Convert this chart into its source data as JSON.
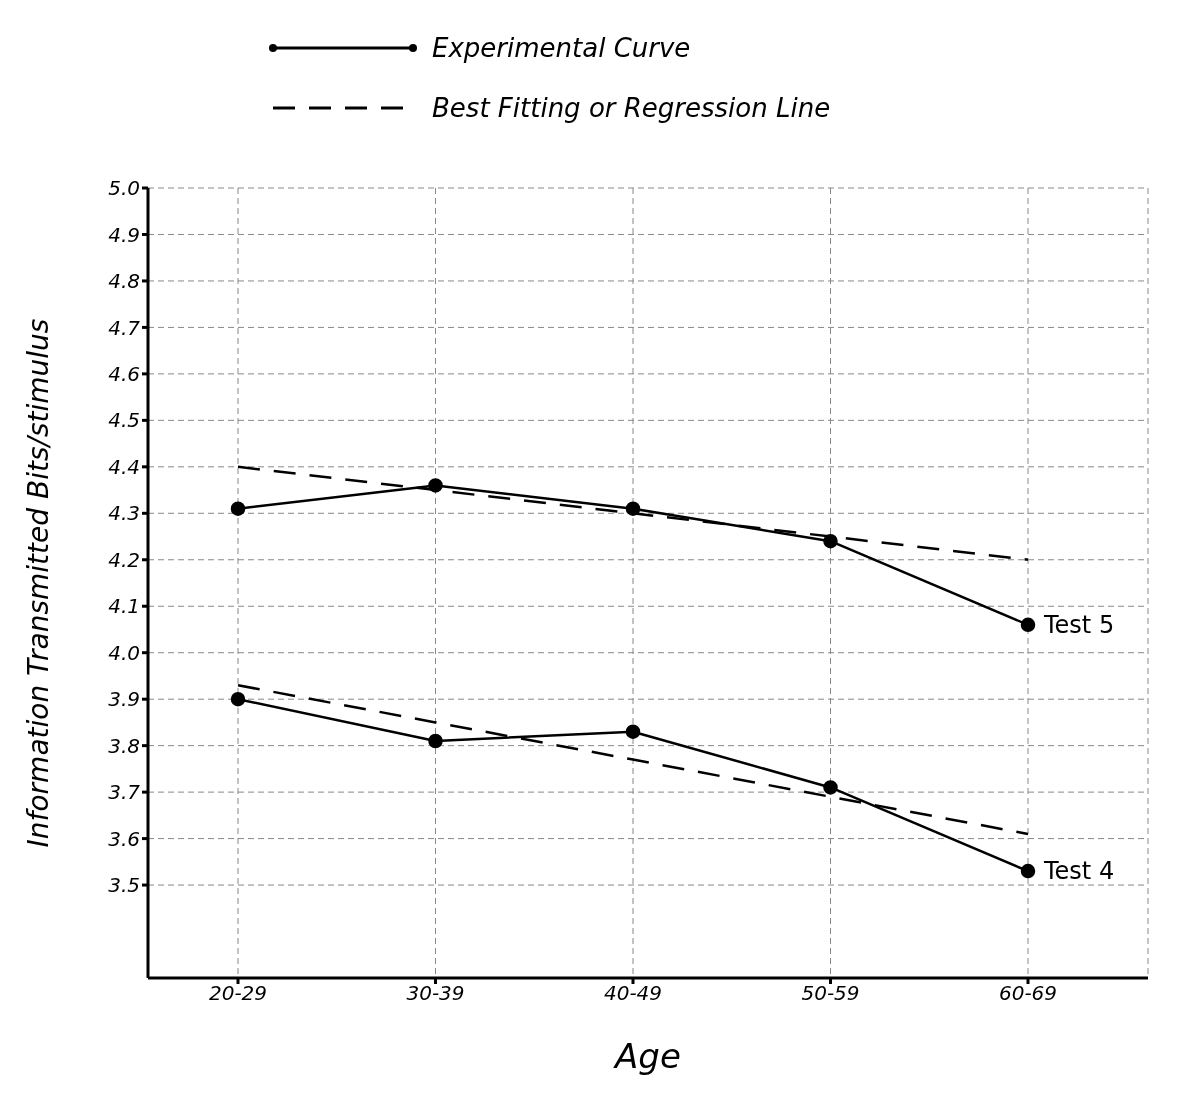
{
  "chart_data": {
    "type": "line",
    "xlabel": "Age",
    "ylabel": "Information Transmitted   Bits/stimulus",
    "categories": [
      "20-29",
      "30-39",
      "40-49",
      "50-59",
      "60-69"
    ],
    "series": [
      {
        "name": "Test 5",
        "color": "#000000",
        "values": [
          4.31,
          4.36,
          4.31,
          4.24,
          4.06
        ],
        "line_style": "solid",
        "marker": "circle"
      },
      {
        "color": "#000000",
        "values": [
          4.4,
          4.35,
          4.3,
          4.25,
          4.2
        ],
        "line_style": "dashed",
        "marker": "none"
      },
      {
        "name": "Test 4",
        "color": "#000000",
        "values": [
          3.9,
          3.81,
          3.83,
          3.71,
          3.53
        ],
        "line_style": "solid",
        "marker": "circle"
      },
      {
        "color": "#000000",
        "values": [
          3.93,
          3.85,
          3.77,
          3.69,
          3.61
        ],
        "line_style": "dashed",
        "marker": "none"
      }
    ],
    "annotations": [
      "Experimental Curve",
      "Best Fitting or Regression Line"
    ],
    "ylim": [
      3.3,
      5.0
    ],
    "yticks": [
      3.5,
      3.6,
      3.7,
      3.8,
      3.9,
      {
        "value": 4,
        "label": "4.0"
      },
      4.1,
      4.2,
      4.3,
      4.4,
      4.5,
      4.6,
      4.7,
      4.8,
      4.9,
      {
        "value": 5,
        "label": "5.0"
      }
    ],
    "grid": true
  }
}
